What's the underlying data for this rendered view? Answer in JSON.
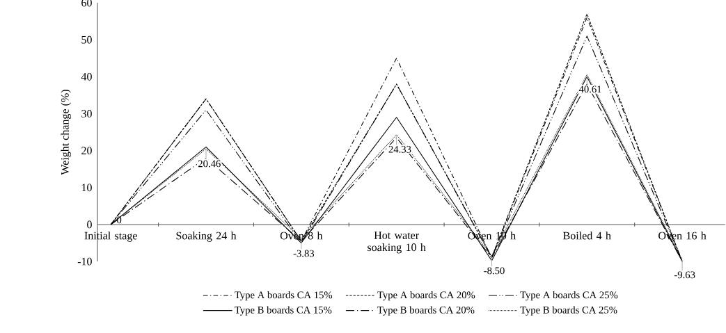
{
  "chart_data": {
    "type": "line",
    "ylabel": "Weight change (%)",
    "categories": [
      "Initial stage",
      "Soaking 24 h",
      "Oven 8 h",
      "Hot water soaking 10 h",
      "Oven 10 h",
      "Boiled  4 h",
      "Oven 16 h"
    ],
    "ylim": [
      -10,
      60
    ],
    "yticks": [
      -10,
      0,
      10,
      20,
      30,
      40,
      50,
      60
    ],
    "grid": false,
    "legend": "bottom",
    "marker": "none",
    "series": [
      {
        "name": "Type A boards  CA 15%",
        "color": "#000000",
        "line_style": "dashdot",
        "values": [
          0,
          34,
          -4.5,
          45,
          -9,
          56,
          -10
        ]
      },
      {
        "name": "Type A boards CA 20%",
        "color": "#000000",
        "line_style": "dashed",
        "values": [
          0,
          34,
          -4.5,
          38,
          -8.8,
          57,
          -10
        ]
      },
      {
        "name": "Type A boards CA 25%",
        "color": "#000000",
        "line_style": "dashdotdot",
        "values": [
          0,
          31,
          -5,
          38,
          -9,
          51,
          -10
        ]
      },
      {
        "name": "Type B boards CA 15%",
        "color": "#000000",
        "line_style": "solid",
        "values": [
          0,
          21,
          -5,
          29,
          -9.8,
          40,
          -10
        ]
      },
      {
        "name": "Type B boards CA 20%",
        "color": "#000000",
        "line_style": "longdashdot",
        "values": [
          0,
          18,
          -4.5,
          23.5,
          -9,
          38,
          -10
        ]
      },
      {
        "name": "Type B boards CA 25%",
        "color": "#000000",
        "line_style": "dotted",
        "values": [
          0,
          20.46,
          -3.83,
          24.33,
          -8.5,
          40.61,
          -9.63
        ],
        "value_labels": [
          "0",
          "20.46",
          "-3.83",
          "24.33",
          "-8.50",
          "40.61",
          "-9.63"
        ]
      }
    ]
  }
}
